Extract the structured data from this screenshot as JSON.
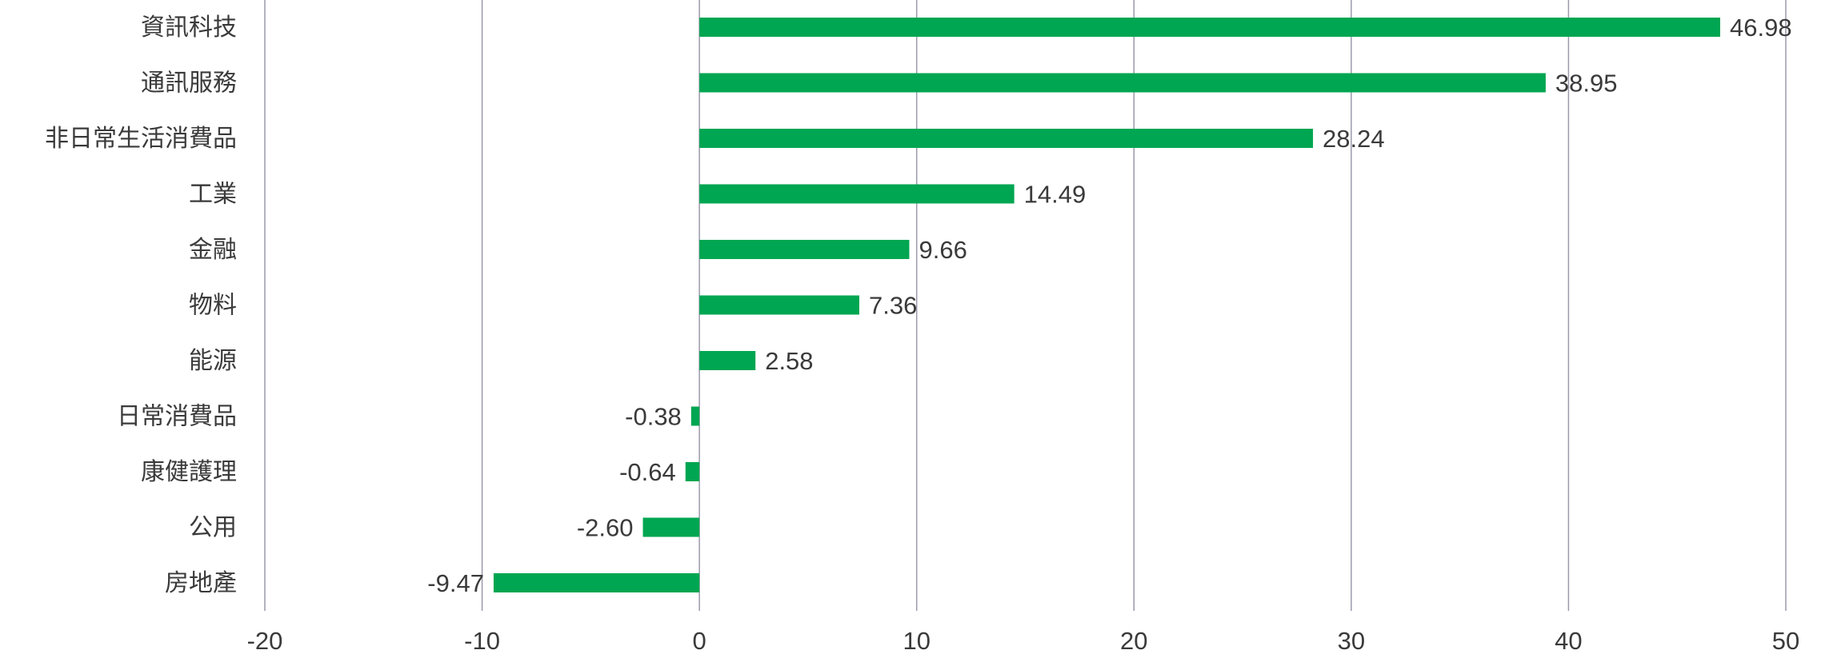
{
  "chart_data": {
    "type": "bar",
    "orientation": "horizontal",
    "categories": [
      "資訊科技",
      "通訊服務",
      "非日常生活消費品",
      "工業",
      "金融",
      "物料",
      "能源",
      "日常消費品",
      "康健護理",
      "公用",
      "房地產"
    ],
    "values": [
      46.98,
      38.95,
      28.24,
      14.49,
      9.66,
      7.36,
      2.58,
      -0.38,
      -0.64,
      -2.6,
      -9.47
    ],
    "value_labels": [
      "46.98",
      "38.95",
      "28.24",
      "14.49",
      "9.66",
      "7.36",
      "2.58",
      "-0.38",
      "-0.64",
      "-2.60",
      "-9.47"
    ],
    "title": "",
    "xlabel": "",
    "ylabel": "",
    "xlim": [
      -20,
      50
    ],
    "x_ticks": [
      -20,
      -10,
      0,
      10,
      20,
      30,
      40,
      50
    ],
    "x_tick_labels": [
      "-20",
      "-10",
      "0",
      "10",
      "20",
      "30",
      "40",
      "50"
    ],
    "grid": "vertical",
    "legend": "none",
    "bar_color": "#00a651",
    "grid_color": "#9a9aaa",
    "text_color": "#3a3a3a"
  }
}
